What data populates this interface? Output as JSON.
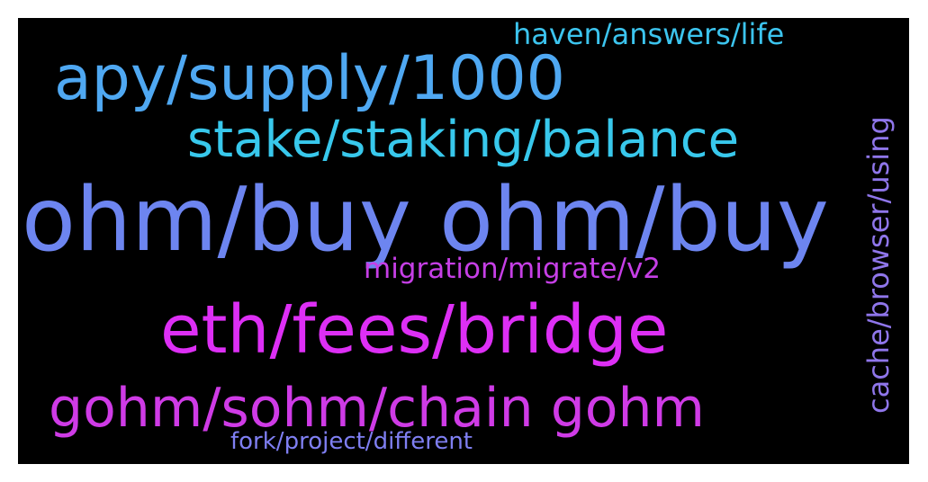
{
  "word_cloud": {
    "background": "#000000",
    "frame": "#ffffff",
    "words": [
      {
        "text": "haven/answers/life",
        "color": "#3cc4ee"
      },
      {
        "text": "apy/supply/1000",
        "color": "#4fa8f2"
      },
      {
        "text": "stake/staking/balance",
        "color": "#38c8ec"
      },
      {
        "text": "ohm/buy ohm/buy",
        "color": "#6d85f0"
      },
      {
        "text": "migration/migrate/v2",
        "color": "#c63fe6"
      },
      {
        "text": "eth/fees/bridge",
        "color": "#dd2ff5"
      },
      {
        "text": "gohm/sohm/chain gohm",
        "color": "#cf3be6"
      },
      {
        "text": "fork/project/different",
        "color": "#7f7ff2"
      },
      {
        "text": "cache/browser/using",
        "color": "#8f76ea"
      }
    ]
  }
}
